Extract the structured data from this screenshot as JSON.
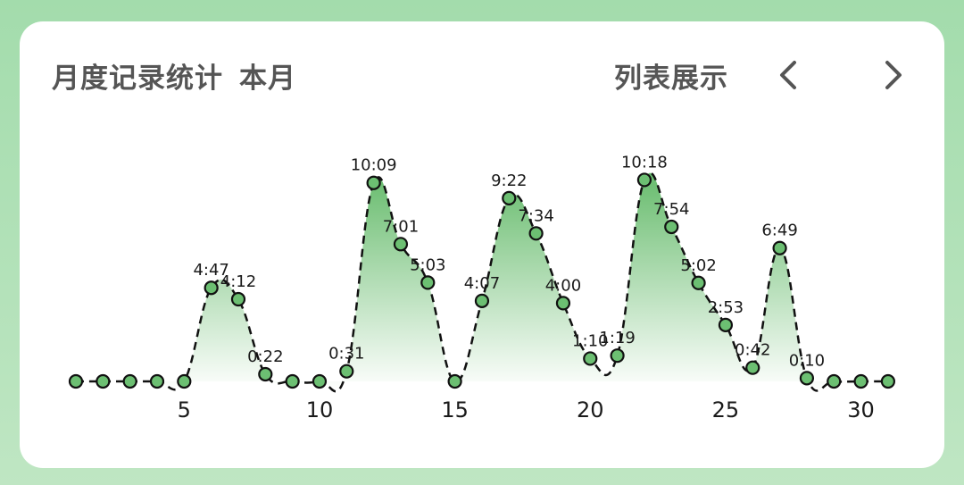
{
  "header": {
    "title": "月度记录统计",
    "period": "本月",
    "list_view_label": "列表展示",
    "prev_icon": "chevron-left-icon",
    "next_icon": "chevron-right-icon"
  },
  "colors": {
    "background": "#a3dcac",
    "card": "#ffffff",
    "point_fill": "#6cbf72",
    "area_top": "#5fb865",
    "line": "#111111",
    "text": "#555555"
  },
  "chart_data": {
    "type": "line",
    "title": "",
    "xlabel": "",
    "ylabel": "",
    "x": [
      1,
      2,
      3,
      4,
      5,
      6,
      7,
      8,
      9,
      10,
      11,
      12,
      13,
      14,
      15,
      16,
      17,
      18,
      19,
      20,
      21,
      22,
      23,
      24,
      25,
      26,
      27,
      28,
      29,
      30,
      31
    ],
    "values_minutes": [
      0,
      0,
      0,
      0,
      0,
      287,
      252,
      22,
      0,
      0,
      31,
      609,
      421,
      303,
      0,
      247,
      562,
      454,
      240,
      70,
      79,
      618,
      474,
      302,
      173,
      42,
      409,
      10,
      0,
      0,
      0
    ],
    "value_labels": [
      "",
      "",
      "",
      "",
      "",
      "4:47",
      "4:12",
      "0:22",
      "",
      "",
      "0:31",
      "10:09",
      "7:01",
      "5:03",
      "",
      "4:07",
      "9:22",
      "7:34",
      "4:00",
      "1:10",
      "1:19",
      "10:18",
      "7:54",
      "5:02",
      "2:53",
      "0:42",
      "6:49",
      "0:10",
      "",
      "",
      ""
    ],
    "xticks": [
      5,
      10,
      15,
      20,
      25,
      30
    ],
    "xlim": [
      1,
      31
    ],
    "ylim_minutes": [
      0,
      660
    ],
    "line_style": "dashed",
    "area_fill": "gradient",
    "grid": false,
    "legend": "none"
  }
}
